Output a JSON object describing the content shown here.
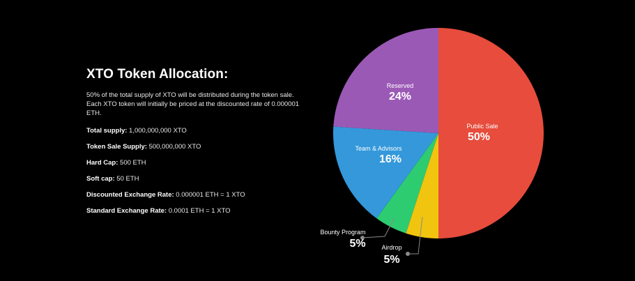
{
  "info": {
    "title": "XTO Token Allocation:",
    "description": "50% of the total supply of XTO will be distributed during the token sale. Each XTO token will initially be priced at the discounted rate of 0.000001 ETH.",
    "stats": [
      {
        "label": "Total supply:",
        "value": "1,000,000,000 XTO"
      },
      {
        "label": "Token Sale Supply:",
        "value": "500,000,000 XTO"
      },
      {
        "label": "Hard Cap:",
        "value": "500 ETH"
      },
      {
        "label": "Soft cap:",
        "value": "50 ETH"
      },
      {
        "label": "Discounted Exchange Rate:",
        "value": "0.000001 ETH = 1 XTO"
      },
      {
        "label": "Standard Exchange Rate:",
        "value": "0.0001 ETH = 1 XTO"
      }
    ]
  },
  "chart_data": {
    "type": "pie",
    "title": "",
    "slices": [
      {
        "name": "Public Sale",
        "value": 50,
        "label": "50%",
        "color": "#e74c3c"
      },
      {
        "name": "Airdrop",
        "value": 5,
        "label": "5%",
        "color": "#f1c40f"
      },
      {
        "name": "Bounty Program",
        "value": 5,
        "label": "5%",
        "color": "#2ecc71"
      },
      {
        "name": "Team & Advisors",
        "value": 16,
        "label": "16%",
        "color": "#3498db"
      },
      {
        "name": "Reserved",
        "value": 24,
        "label": "24%",
        "color": "#9b59b6"
      }
    ],
    "start": "top",
    "direction": "clockwise"
  }
}
